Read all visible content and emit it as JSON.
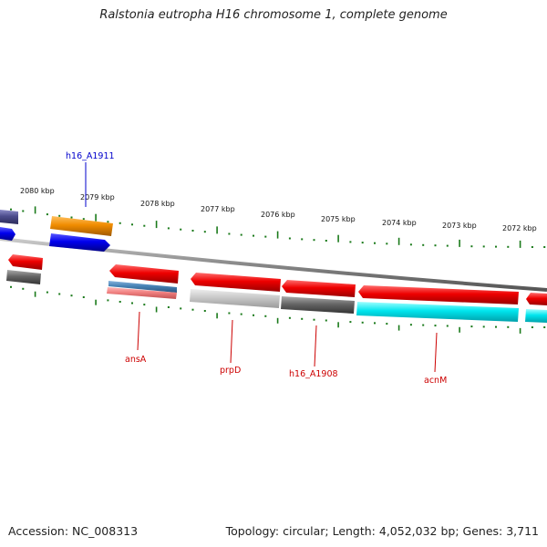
{
  "title": "Ralstonia eutropha H16 chromosome 1, complete genome",
  "footer": {
    "accession": "Accession: NC_008313",
    "summary": "Topology: circular; Length: 4,052,032 bp; Genes: 3,711"
  },
  "ruler_labels": [
    "2080 kbp",
    "2079 kbp",
    "2078 kbp",
    "2077 kbp",
    "2076 kbp",
    "2075 kbp",
    "2074 kbp",
    "2073 kbp",
    "2072 kbp"
  ],
  "gene_labels": [
    {
      "text": "h16_A1911",
      "color": "#0000cc"
    },
    {
      "text": "ansA",
      "color": "#cc0000"
    },
    {
      "text": "prpD",
      "color": "#cc0000"
    },
    {
      "text": "h16_A1908",
      "color": "#cc0000"
    },
    {
      "text": "acnM",
      "color": "#cc0000"
    }
  ],
  "colors": {
    "backbone": "#888888",
    "tick": "#1a7a1a",
    "red_feature": "#ee0000",
    "blue_feature": "#0000ee",
    "orange_feature": "#f08c00",
    "cyan_feature": "#00e5ee",
    "gray_feature": "#666666",
    "light_gray_feature": "#c8c8c8",
    "steel_blue_feature": "#4682b4",
    "pink_feature": "#f08080",
    "slate_feature": "#4c4c8c"
  }
}
